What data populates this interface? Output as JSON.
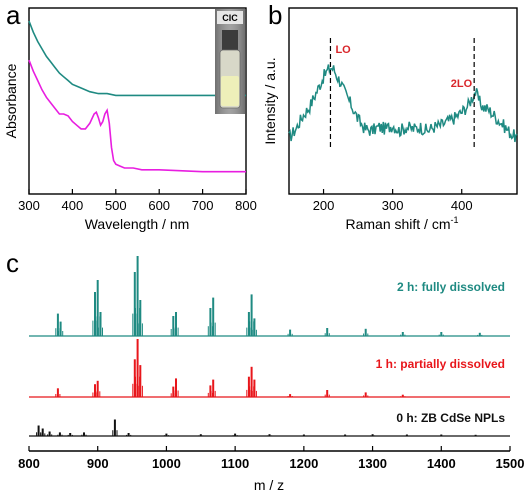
{
  "colors": {
    "teal": "#1f8a82",
    "magenta": "#e81ee0",
    "red": "#e8161b",
    "black": "#111111",
    "annotation": "#d9262b"
  },
  "panels": {
    "a": "a",
    "b": "b",
    "c": "c"
  },
  "chart_data": [
    {
      "panel": "a",
      "type": "line",
      "xlabel": "Wavelength / nm",
      "ylabel": "Absorbance",
      "xlim": [
        300,
        800
      ],
      "xticks": [
        300,
        400,
        500,
        600,
        700,
        800
      ],
      "inset_label": "CIC",
      "series": [
        {
          "color": "teal",
          "x": [
            300,
            310,
            320,
            330,
            340,
            350,
            360,
            370,
            380,
            390,
            400,
            420,
            440,
            460,
            480,
            500,
            520,
            540,
            560,
            600,
            700,
            800
          ],
          "y": [
            0.93,
            0.87,
            0.82,
            0.78,
            0.74,
            0.71,
            0.68,
            0.65,
            0.63,
            0.61,
            0.59,
            0.57,
            0.55,
            0.54,
            0.54,
            0.53,
            0.53,
            0.53,
            0.53,
            0.53,
            0.53,
            0.53
          ]
        },
        {
          "color": "magenta",
          "x": [
            300,
            310,
            320,
            330,
            340,
            350,
            360,
            370,
            380,
            390,
            400,
            410,
            420,
            430,
            440,
            450,
            455,
            460,
            465,
            470,
            475,
            480,
            485,
            490,
            495,
            500,
            510,
            520,
            540,
            560,
            600,
            700,
            800
          ],
          "y": [
            0.72,
            0.66,
            0.61,
            0.56,
            0.52,
            0.49,
            0.46,
            0.43,
            0.43,
            0.42,
            0.39,
            0.37,
            0.35,
            0.35,
            0.38,
            0.43,
            0.44,
            0.41,
            0.37,
            0.39,
            0.43,
            0.45,
            0.38,
            0.25,
            0.18,
            0.16,
            0.15,
            0.14,
            0.14,
            0.13,
            0.13,
            0.12,
            0.12
          ]
        }
      ]
    },
    {
      "panel": "b",
      "type": "line",
      "xlabel": "Raman shift / cm",
      "xlabel_sup": "-1",
      "ylabel": "Intensity / a.u.",
      "xlim": [
        150,
        480
      ],
      "xticks": [
        200,
        300,
        400
      ],
      "annotations": [
        {
          "text": "LO",
          "x": 210
        },
        {
          "text": "2LO",
          "x": 418
        }
      ],
      "series": [
        {
          "color": "teal",
          "x": [
            150,
            160,
            170,
            180,
            190,
            200,
            205,
            210,
            215,
            220,
            225,
            230,
            240,
            250,
            260,
            270,
            280,
            290,
            300,
            310,
            320,
            330,
            340,
            350,
            360,
            370,
            380,
            390,
            400,
            410,
            415,
            420,
            425,
            430,
            440,
            450,
            460,
            470,
            480
          ],
          "y": [
            0.3,
            0.35,
            0.42,
            0.47,
            0.55,
            0.63,
            0.66,
            0.68,
            0.67,
            0.63,
            0.6,
            0.55,
            0.48,
            0.4,
            0.35,
            0.34,
            0.36,
            0.35,
            0.37,
            0.34,
            0.36,
            0.35,
            0.36,
            0.34,
            0.36,
            0.37,
            0.39,
            0.41,
            0.44,
            0.48,
            0.52,
            0.55,
            0.5,
            0.47,
            0.45,
            0.41,
            0.37,
            0.33,
            0.3
          ]
        }
      ]
    },
    {
      "panel": "c",
      "type": "bar",
      "xlabel": "m / z",
      "xlim": [
        800,
        1500
      ],
      "xticks": [
        800,
        900,
        1000,
        1100,
        1200,
        1300,
        1400,
        1500
      ],
      "series": [
        {
          "name": "2 h: fully dissolved",
          "color": "teal",
          "peaks": [
            [
              842,
              0.28
            ],
            [
              846,
              0.18
            ],
            [
              896,
              0.55
            ],
            [
              900,
              0.7
            ],
            [
              904,
              0.3
            ],
            [
              954,
              0.8
            ],
            [
              958,
              1.0
            ],
            [
              962,
              0.45
            ],
            [
              1010,
              0.25
            ],
            [
              1014,
              0.3
            ],
            [
              1064,
              0.35
            ],
            [
              1068,
              0.48
            ],
            [
              1120,
              0.3
            ],
            [
              1124,
              0.52
            ],
            [
              1128,
              0.22
            ],
            [
              1180,
              0.08
            ],
            [
              1234,
              0.1
            ],
            [
              1290,
              0.09
            ],
            [
              1344,
              0.05
            ],
            [
              1400,
              0.05
            ],
            [
              1456,
              0.04
            ]
          ]
        },
        {
          "name": "1 h:  partially dissolved",
          "color": "red",
          "peaks": [
            [
              842,
              0.15
            ],
            [
              896,
              0.22
            ],
            [
              900,
              0.28
            ],
            [
              954,
              0.65
            ],
            [
              958,
              1.0
            ],
            [
              962,
              0.55
            ],
            [
              1010,
              0.18
            ],
            [
              1014,
              0.32
            ],
            [
              1064,
              0.2
            ],
            [
              1068,
              0.3
            ],
            [
              1120,
              0.35
            ],
            [
              1124,
              0.52
            ],
            [
              1128,
              0.3
            ],
            [
              1180,
              0.05
            ],
            [
              1234,
              0.12
            ],
            [
              1290,
              0.08
            ],
            [
              1344,
              0.04
            ]
          ]
        },
        {
          "name": "0 h:  ZB CdSe NPLs",
          "color": "black",
          "peaks": [
            [
              814,
              0.35
            ],
            [
              820,
              0.25
            ],
            [
              830,
              0.15
            ],
            [
              845,
              0.12
            ],
            [
              860,
              0.1
            ],
            [
              880,
              0.12
            ],
            [
              925,
              0.55
            ],
            [
              945,
              0.1
            ],
            [
              1000,
              0.08
            ],
            [
              1050,
              0.06
            ],
            [
              1100,
              0.08
            ],
            [
              1150,
              0.06
            ],
            [
              1200,
              0.05
            ],
            [
              1260,
              0.05
            ],
            [
              1300,
              0.06
            ],
            [
              1350,
              0.05
            ],
            [
              1400,
              0.05
            ],
            [
              1450,
              0.04
            ]
          ]
        }
      ]
    }
  ]
}
